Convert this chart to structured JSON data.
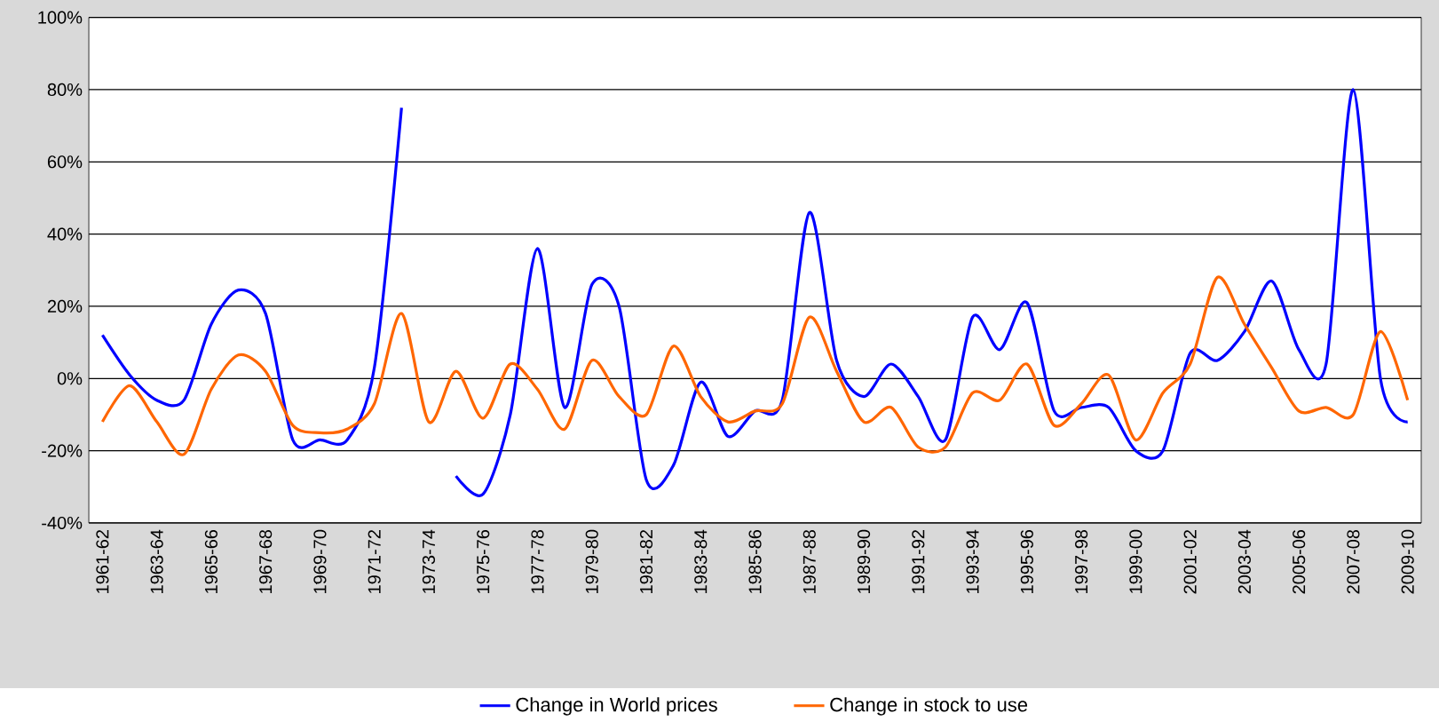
{
  "chart_data": {
    "type": "line",
    "categories": [
      "1961-62",
      null,
      "1963-64",
      null,
      "1965-66",
      null,
      "1967-68",
      null,
      "1969-70",
      null,
      "1971-72",
      null,
      "1973-74",
      null,
      "1975-76",
      null,
      "1977-78",
      null,
      "1979-80",
      null,
      "1981-82",
      null,
      "1983-84",
      null,
      "1985-86",
      null,
      "1987-88",
      null,
      "1989-90",
      null,
      "1991-92",
      null,
      "1993-94",
      null,
      "1995-96",
      null,
      "1997-98",
      null,
      "1999-00",
      null,
      "2001-02",
      null,
      "2003-04",
      null,
      "2005-06",
      null,
      "2007-08",
      null,
      "2009-10"
    ],
    "series": [
      {
        "name": "Change in World prices",
        "color": "#0000ff",
        "values": [
          12,
          1,
          -6,
          -6,
          15,
          24.5,
          18,
          -17,
          -17,
          -17,
          3,
          75,
          null,
          -27,
          -32,
          -10,
          36,
          -8,
          26,
          20,
          -28,
          -24,
          -1,
          -16,
          -9,
          -6,
          46,
          5,
          -5,
          4,
          -5,
          -17,
          17,
          8,
          21,
          -9,
          -8,
          -8,
          -20,
          -20,
          7,
          5,
          13,
          27,
          8,
          4,
          80,
          0,
          -12
        ]
      },
      {
        "name": "Change in stock to use",
        "color": "#ff6600",
        "values": [
          -12,
          -2,
          -12,
          -21,
          -3,
          6.5,
          2,
          -13,
          -15,
          -14,
          -7,
          18,
          -12,
          2,
          -11,
          4,
          -3,
          -14,
          5,
          -5,
          -10,
          9,
          -5,
          -12,
          -9,
          -7,
          17,
          2,
          -12,
          -8,
          -19,
          -19,
          -4,
          -6,
          4,
          -13,
          -7,
          1,
          -17,
          -4,
          4,
          28,
          15,
          3,
          -9,
          -8,
          -10,
          13,
          -6
        ]
      }
    ],
    "ylim": [
      -40,
      100
    ],
    "yticks": [
      {
        "value": -40,
        "label": "-40%"
      },
      {
        "value": -20,
        "label": "-20%"
      },
      {
        "value": 0,
        "label": "0%"
      },
      {
        "value": 20,
        "label": "20%"
      },
      {
        "value": 40,
        "label": "40%"
      },
      {
        "value": 60,
        "label": "60%"
      },
      {
        "value": 80,
        "label": "80%"
      },
      {
        "value": 100,
        "label": "100%"
      }
    ],
    "grid": "y",
    "legend": "bottom",
    "marker": "none",
    "line_style": "solid"
  }
}
